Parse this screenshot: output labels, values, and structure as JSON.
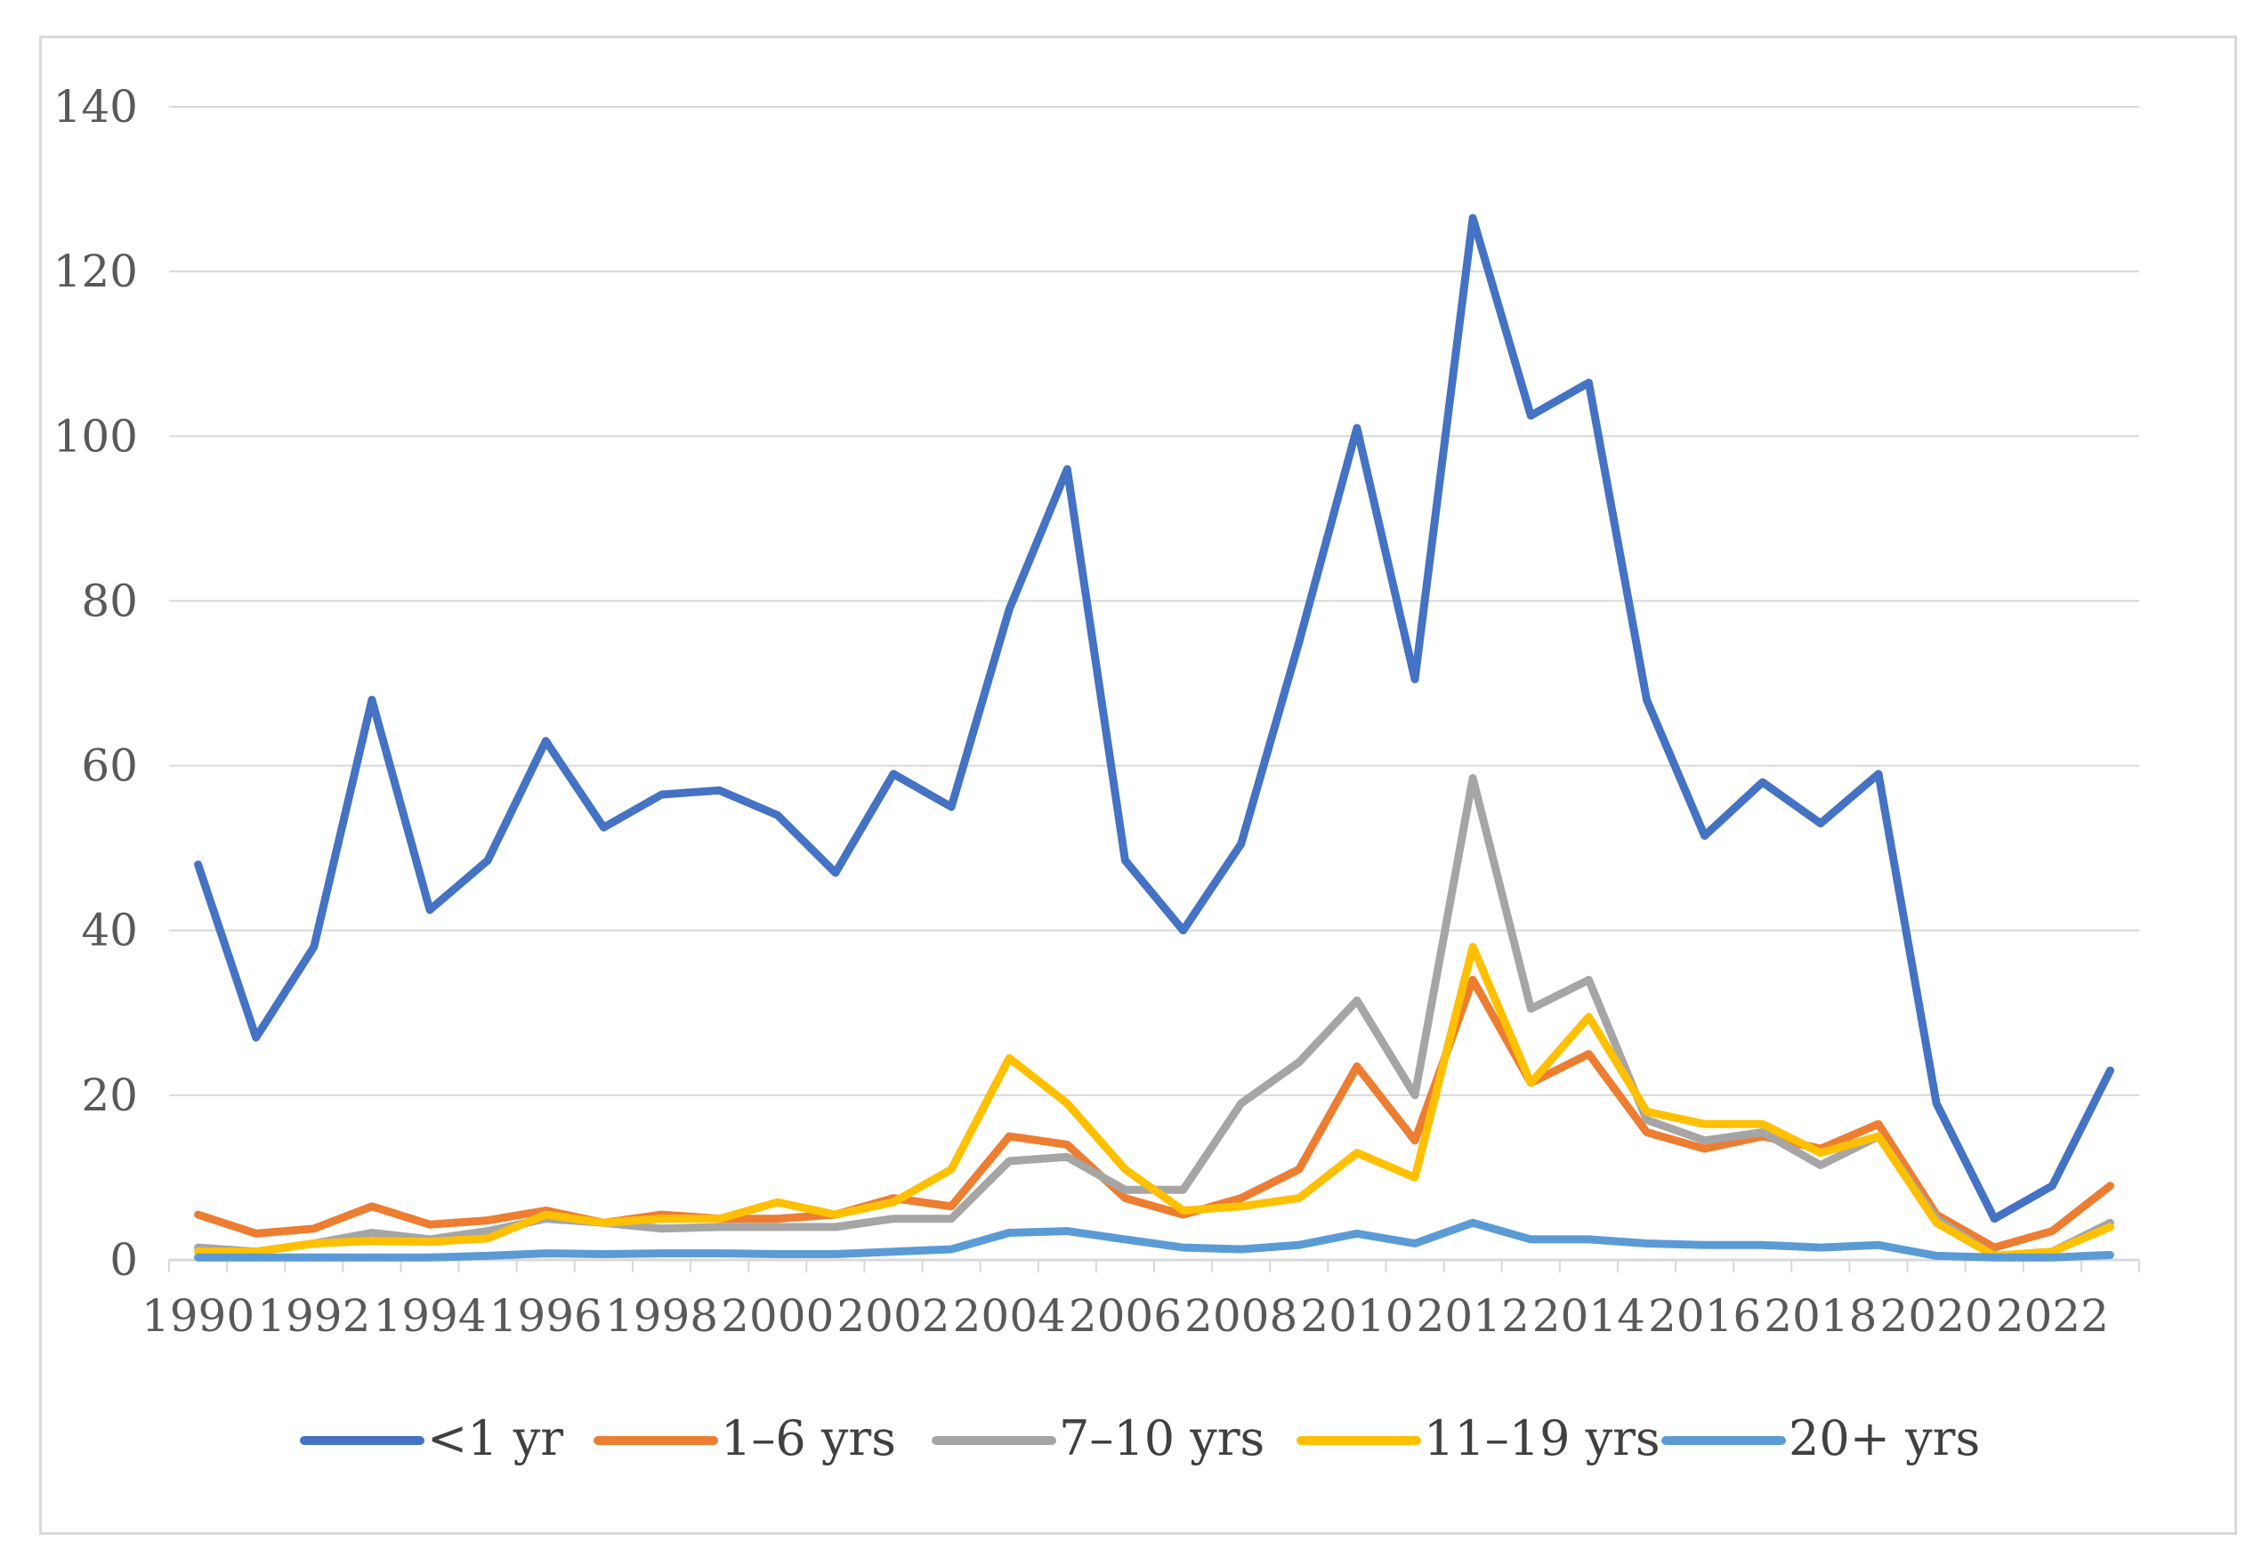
{
  "chart_data": {
    "type": "line",
    "title": "",
    "xlabel": "",
    "ylabel": "",
    "ylim": [
      0,
      140
    ],
    "yticks": [
      0,
      20,
      40,
      60,
      80,
      100,
      120,
      140
    ],
    "grid": true,
    "legend_position": "bottom",
    "x": [
      1990,
      1991,
      1992,
      1993,
      1994,
      1995,
      1996,
      1997,
      1998,
      1999,
      2000,
      2001,
      2002,
      2003,
      2004,
      2005,
      2006,
      2007,
      2008,
      2009,
      2010,
      2011,
      2012,
      2013,
      2014,
      2015,
      2016,
      2017,
      2018,
      2019,
      2020,
      2021,
      2022,
      2023
    ],
    "x_tick_labels": [
      "1990",
      "1992",
      "1994",
      "1996",
      "1998",
      "2000",
      "2002",
      "2004",
      "2006",
      "2008",
      "2010",
      "2012",
      "2014",
      "2016",
      "2018",
      "2020",
      "2022"
    ],
    "series": [
      {
        "name": "<1 yr",
        "color": "#4472c4",
        "values": [
          48,
          27,
          38,
          68,
          42.5,
          48.5,
          63,
          52.5,
          56.5,
          57,
          54,
          47,
          59,
          55,
          79,
          96,
          48.5,
          40,
          50.5,
          75,
          101,
          70.5,
          126.5,
          102.5,
          106.5,
          68,
          51.5,
          58,
          53,
          59,
          19,
          5,
          9,
          23
        ]
      },
      {
        "name": "1–6 yrs",
        "color": "#ed7d31",
        "values": [
          5.5,
          3.2,
          3.8,
          6.5,
          4.3,
          4.8,
          6,
          4.5,
          5.5,
          5,
          5,
          5.5,
          7.5,
          6.5,
          15,
          14,
          7.5,
          5.5,
          7.5,
          11,
          23.5,
          14.5,
          34,
          21.5,
          25,
          15.5,
          13.5,
          15,
          13.5,
          16.5,
          5.5,
          1.5,
          3.5,
          9
        ]
      },
      {
        "name": "7–10 yrs",
        "color": "#a5a5a5",
        "values": [
          1.5,
          1,
          2,
          3.3,
          2.5,
          3.5,
          5,
          4.5,
          3.8,
          4,
          4,
          4,
          5,
          5,
          12,
          12.5,
          8.5,
          8.5,
          19,
          24,
          31.5,
          20,
          58.5,
          30.5,
          34,
          17,
          14.5,
          15.5,
          11.5,
          15,
          5,
          0.5,
          1,
          4.5
        ]
      },
      {
        "name": "11–19 yrs",
        "color": "#ffc000",
        "values": [
          1,
          1,
          2,
          2.3,
          2.2,
          2.6,
          5.5,
          4.5,
          5,
          5,
          7,
          5.5,
          7,
          11,
          24.5,
          19,
          11,
          6,
          6.5,
          7.5,
          13,
          10,
          38,
          21.5,
          29.5,
          18,
          16.5,
          16.5,
          13,
          15,
          4.5,
          0.5,
          1,
          4
        ]
      },
      {
        "name": "20+ yrs",
        "color": "#5b9bd5",
        "values": [
          0.3,
          0.3,
          0.3,
          0.3,
          0.3,
          0.5,
          0.8,
          0.7,
          0.8,
          0.8,
          0.7,
          0.7,
          1,
          1.3,
          3.3,
          3.5,
          2.5,
          1.5,
          1.3,
          1.8,
          3.2,
          2,
          4.5,
          2.5,
          2.5,
          2,
          1.8,
          1.8,
          1.5,
          1.8,
          0.5,
          0.3,
          0.3,
          0.6
        ]
      }
    ]
  }
}
